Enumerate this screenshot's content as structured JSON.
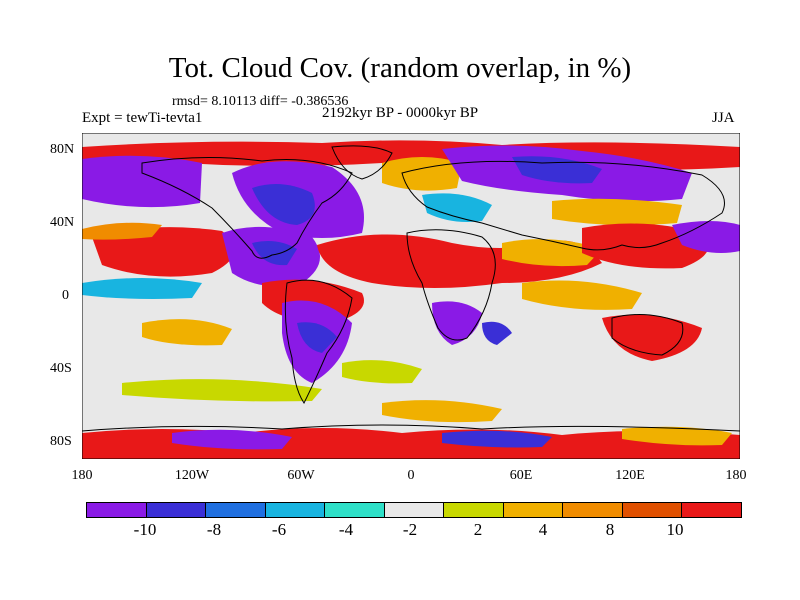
{
  "title": "Tot. Cloud Cov. (random overlap, in %)",
  "stats": "rmsd= 8.10113 diff= -0.386536",
  "experiment": "Expt = tewTi-tevta1",
  "period": "2192kyr BP - 0000kyr BP",
  "season": "JJA",
  "lat_labels": [
    "80N",
    "40N",
    "0",
    "40S",
    "80S"
  ],
  "lon_labels": [
    "180",
    "120W",
    "60W",
    "0",
    "60E",
    "120E",
    "180"
  ],
  "colorbar": {
    "colors": [
      "#8a1ae6",
      "#3a2fd6",
      "#1f6fe0",
      "#18b4e0",
      "#2ee0c8",
      "#e8e8e8",
      "#c8d800",
      "#f0b000",
      "#f08c00",
      "#e05000",
      "#e81818"
    ],
    "labels": [
      "-10",
      "-8",
      "-6",
      "-4",
      "-2",
      "2",
      "4",
      "8",
      "10"
    ]
  },
  "legend_colors": {
    "strong_decrease": "#8a1ae6",
    "decrease": "#3a2fd6",
    "neutral": "#e8e8e8",
    "increase": "#f0b000",
    "strong_increase": "#e81818"
  }
}
